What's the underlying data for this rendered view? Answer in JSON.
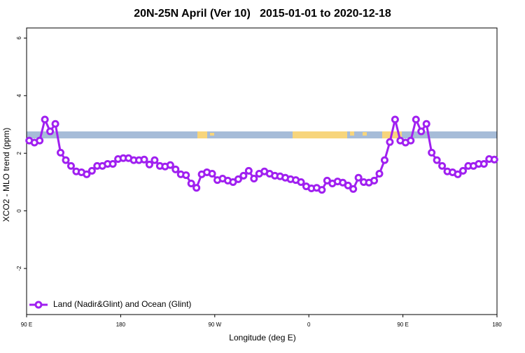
{
  "chart_data": {
    "type": "line",
    "title": "20N-25N April (Ver 10)   2015-01-01 to 2020-12-18",
    "x_label": "Longitude (deg E)",
    "y_label": "XCO2 - MLO trend (ppm)",
    "xlim": [
      90,
      540
    ],
    "xticks": [
      {
        "value": 90,
        "label": "90 E"
      },
      180,
      {
        "value": 270,
        "label": "90 W"
      },
      {
        "value": 360,
        "label": "0"
      },
      {
        "value": 450,
        "label": "90 E"
      },
      {
        "value": 540,
        "label": "180"
      }
    ],
    "ylim": [
      -3.6,
      6.35
    ],
    "yticks": [
      -2,
      0,
      2,
      4,
      6
    ],
    "grid": false,
    "legend": "bottom-left",
    "x": [
      92.5,
      97.5,
      102.5,
      107.5,
      112.5,
      117.5,
      122.5,
      127.5,
      132.5,
      137.5,
      142.5,
      147.5,
      152.5,
      157.5,
      162.5,
      167.5,
      172.5,
      177.5,
      182.5,
      187.5,
      192.5,
      197.5,
      202.5,
      207.5,
      212.5,
      217.5,
      222.5,
      227.5,
      232.5,
      237.5,
      242.5,
      247.5,
      252.5,
      257.5,
      262.5,
      267.5,
      272.5,
      277.5,
      282.5,
      287.5,
      292.5,
      297.5,
      302.5,
      307.5,
      312.5,
      317.5,
      322.5,
      327.5,
      332.5,
      337.5,
      342.5,
      347.5,
      352.5,
      357.5,
      362.5,
      367.5,
      372.5,
      377.5,
      382.5,
      387.5,
      392.5,
      397.5,
      402.5,
      407.5,
      412.5,
      417.5,
      422.5,
      427.5,
      432.5,
      437.5,
      442.5,
      447.5,
      452.5,
      457.5,
      462.5,
      467.5,
      472.5,
      477.5,
      482.5,
      487.5,
      492.5,
      497.5,
      502.5,
      507.5,
      512.5,
      517.5,
      522.5,
      527.5,
      532.5,
      537.5
    ],
    "series": [
      {
        "name": "Land (Nadir&Glint) and Ocean (Glint)",
        "color": "#a020f0",
        "values": [
          2.44,
          2.37,
          2.44,
          3.17,
          2.76,
          3.02,
          2.02,
          1.76,
          1.56,
          1.37,
          1.34,
          1.27,
          1.39,
          1.56,
          1.56,
          1.63,
          1.63,
          1.8,
          1.83,
          1.83,
          1.76,
          1.76,
          1.78,
          1.61,
          1.76,
          1.56,
          1.54,
          1.59,
          1.44,
          1.27,
          1.24,
          0.95,
          0.8,
          1.27,
          1.34,
          1.29,
          1.07,
          1.12,
          1.05,
          1.0,
          1.1,
          1.22,
          1.39,
          1.12,
          1.29,
          1.37,
          1.29,
          1.22,
          1.2,
          1.15,
          1.1,
          1.07,
          1.0,
          0.85,
          0.78,
          0.8,
          0.73,
          1.05,
          0.95,
          1.02,
          0.98,
          0.88,
          0.76,
          1.15,
          1.0,
          0.98,
          1.05,
          1.29,
          1.76,
          2.39,
          3.17,
          2.44,
          2.37,
          2.44,
          3.17,
          2.76,
          3.02,
          2.02,
          1.76,
          1.56,
          1.37,
          1.34,
          1.27,
          1.39,
          1.56,
          1.56,
          1.63,
          1.63,
          1.8,
          1.78
        ]
      }
    ]
  }
}
